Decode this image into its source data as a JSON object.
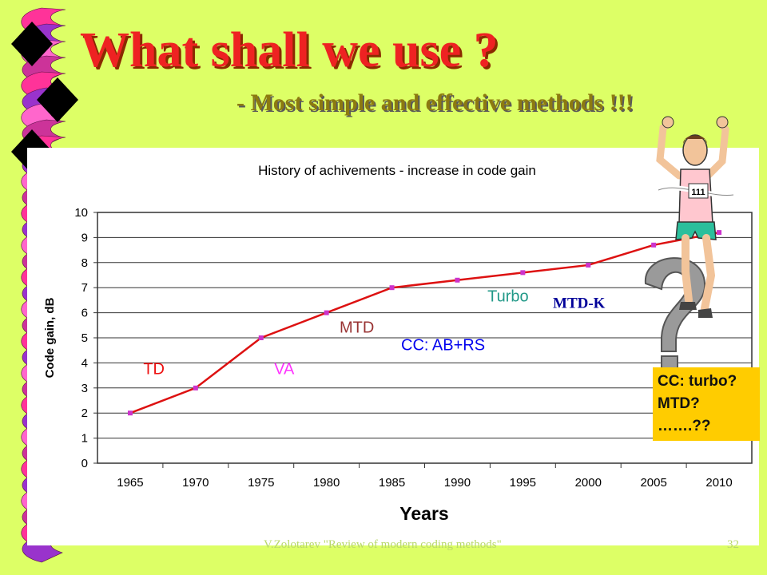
{
  "slide": {
    "title": "What shall we use ?",
    "subtitle": "-   Most simple and effective methods !!!",
    "footer": "V.Zolotarev \"Review of modern coding methods\"",
    "page_number": "32"
  },
  "callout": {
    "lines": [
      "CC: turbo?",
      "MTD?",
      "…….??"
    ]
  },
  "colors": {
    "background": "#ddff66",
    "title": "#ee2222",
    "line": "#dd1111",
    "marker": "#cc33cc",
    "callout": "#ffcc00"
  },
  "chart_data": {
    "type": "line",
    "title": "History  of  achivements -  increase  in  code  gain",
    "xlabel": "Years",
    "ylabel": "Code gain,  dB",
    "categories": [
      "1965",
      "1970",
      "1975",
      "1980",
      "1985",
      "1990",
      "1995",
      "2000",
      "2005",
      "2010"
    ],
    "ylim": [
      0,
      10
    ],
    "yticks": [
      0,
      1,
      2,
      3,
      4,
      5,
      6,
      7,
      8,
      9,
      10
    ],
    "grid": true,
    "series": [
      {
        "x": [
          1965,
          1970,
          1975,
          1980,
          1985,
          1990,
          1995,
          2000,
          2005,
          2010
        ],
        "y": [
          2,
          3,
          5,
          6,
          7,
          7.3,
          7.6,
          7.9,
          8.7,
          9.2
        ]
      }
    ],
    "annotations": [
      {
        "text": "TD",
        "x": 1966,
        "y": 3.55,
        "color": "#ee1111"
      },
      {
        "text": "VA",
        "x": 1976,
        "y": 3.55,
        "color": "#ff33ff"
      },
      {
        "text": "MTD",
        "x": 1981,
        "y": 5.2,
        "color": "#993333"
      },
      {
        "text": "CC: AB+RS",
        "x": 1985.7,
        "y": 4.5,
        "color": "#0000ee"
      },
      {
        "text": "Turbo",
        "x": 1992.3,
        "y": 6.45,
        "color": "#229988"
      },
      {
        "text": "MTD-K",
        "x": 1997.3,
        "y": 6.2,
        "color": "#000099"
      }
    ]
  }
}
